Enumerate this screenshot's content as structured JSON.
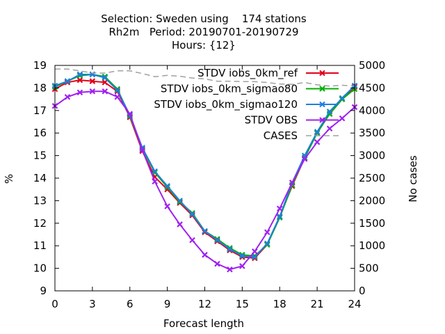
{
  "chart_data": {
    "type": "line",
    "title_lines": [
      "Selection: Sweden using    174 stations",
      "Rh2m   Period: 20190701-20190729",
      "Hours: {12}"
    ],
    "xlabel": "Forecast length",
    "ylabel": "%",
    "y2label": "No cases",
    "xlim": [
      0,
      24
    ],
    "ylim": [
      9,
      19
    ],
    "y2lim": [
      0,
      5000
    ],
    "xticks": [
      0,
      3,
      6,
      9,
      12,
      15,
      18,
      21,
      24
    ],
    "yticks": [
      9,
      10,
      11,
      12,
      13,
      14,
      15,
      16,
      17,
      18,
      19
    ],
    "y2ticks": [
      0,
      500,
      1000,
      1500,
      2000,
      2500,
      3000,
      3500,
      4000,
      4500,
      5000
    ],
    "grid": false,
    "legend_position": "top-right",
    "x": [
      0,
      1,
      2,
      3,
      4,
      5,
      6,
      7,
      8,
      9,
      10,
      11,
      12,
      13,
      14,
      15,
      16,
      17,
      18,
      19,
      20,
      21,
      22,
      23,
      24
    ],
    "series": [
      {
        "name": "STDV iobs_0km_ref",
        "color": "#e3001b",
        "marker": "x",
        "values": [
          17.95,
          18.25,
          18.35,
          18.3,
          18.25,
          17.85,
          16.7,
          15.2,
          14.05,
          13.5,
          12.9,
          12.35,
          11.6,
          11.2,
          10.8,
          10.5,
          10.45,
          11.05,
          12.3,
          13.65,
          14.9,
          16.05,
          16.85,
          17.5,
          18.05
        ]
      },
      {
        "name": "STDV iobs_0km_sigmao80",
        "color": "#00b000",
        "marker": "x",
        "values": [
          18.05,
          18.3,
          18.55,
          18.6,
          18.5,
          17.95,
          16.75,
          15.3,
          14.25,
          13.6,
          12.95,
          12.45,
          11.65,
          11.3,
          10.9,
          10.6,
          10.55,
          11.05,
          12.25,
          13.7,
          14.9,
          16.0,
          16.85,
          17.5,
          17.95
        ]
      },
      {
        "name": "STDV iobs_0km_sigmao120",
        "color": "#1f7fdf",
        "marker": "x",
        "values": [
          18.1,
          18.3,
          18.6,
          18.6,
          18.45,
          17.9,
          16.8,
          15.35,
          14.3,
          13.65,
          13.0,
          12.4,
          11.65,
          11.25,
          10.85,
          10.55,
          10.5,
          11.1,
          12.3,
          13.8,
          15.0,
          16.05,
          16.95,
          17.55,
          18.1
        ]
      },
      {
        "name": "STDV OBS",
        "color": "#a020f0",
        "marker": "x",
        "values": [
          17.2,
          17.6,
          17.8,
          17.85,
          17.85,
          17.6,
          16.85,
          15.25,
          13.85,
          12.75,
          11.95,
          11.25,
          10.6,
          10.2,
          9.95,
          10.1,
          10.75,
          11.6,
          12.65,
          13.8,
          14.85,
          15.6,
          16.2,
          16.65,
          17.15
        ]
      },
      {
        "name": "CASES",
        "color": "#a0a0a0",
        "dash": true,
        "axis": "y2",
        "values": [
          4920,
          4920,
          4880,
          4830,
          4830,
          4880,
          4880,
          4820,
          4750,
          4780,
          4760,
          4720,
          4700,
          4650,
          4650,
          4640,
          4640,
          4620,
          4590,
          4580,
          4620,
          4570,
          4540,
          4560,
          4540
        ]
      }
    ]
  }
}
